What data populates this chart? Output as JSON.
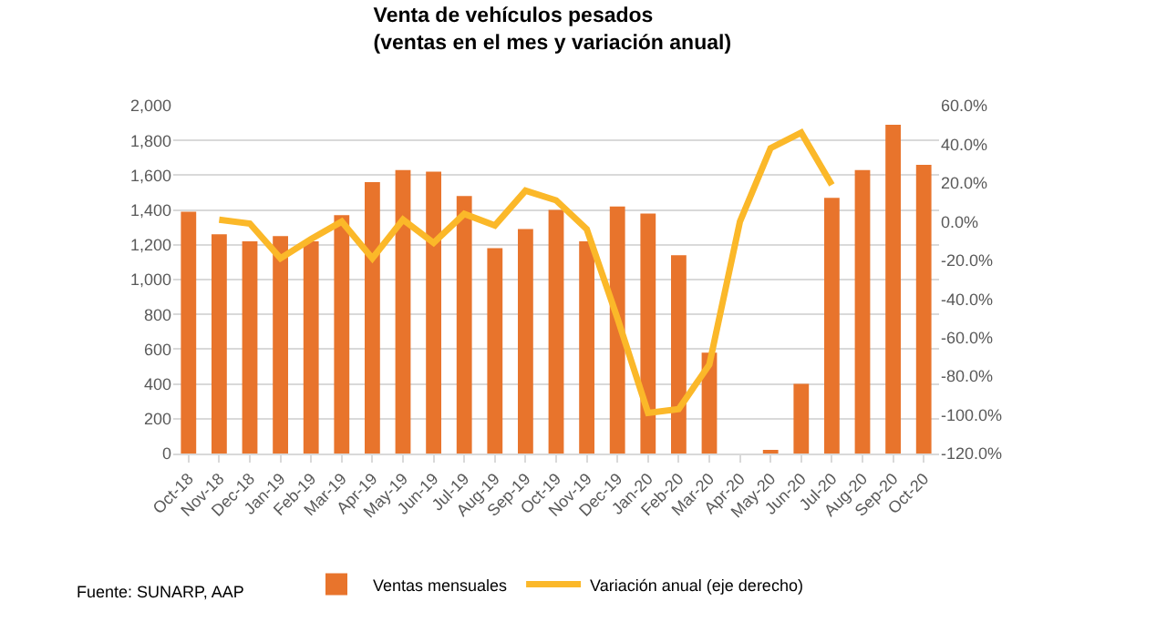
{
  "chart_data": {
    "type": "bar",
    "title": "Venta de vehículos pesados\n(ventas en el mes y variación anual)",
    "categories": [
      "Oct-18",
      "Nov-18",
      "Dec-18",
      "Jan-19",
      "Feb-19",
      "Mar-19",
      "Apr-19",
      "May-19",
      "Jun-19",
      "Jul-19",
      "Aug-19",
      "Sep-19",
      "Oct-19",
      "Nov-19",
      "Dec-19",
      "Jan-20",
      "Feb-20",
      "Mar-20",
      "Apr-20",
      "May-20",
      "Jun-20",
      "Jul-20",
      "Aug-20",
      "Sep-20",
      "Oct-20"
    ],
    "series": [
      {
        "name": "Ventas mensuales",
        "color": "#e8742c",
        "values": [
          1390,
          1260,
          1220,
          1250,
          1220,
          1370,
          1560,
          1630,
          1620,
          1480,
          1180,
          1290,
          1400,
          1220,
          1420,
          1380,
          1140,
          580,
          0,
          20,
          400,
          1470,
          1630,
          1890,
          1660
        ]
      },
      {
        "name": "Variación anual (eje derecho)",
        "type": "line",
        "axis": "y2",
        "color": "#fbb829",
        "values": [
          null,
          1,
          -1,
          -19,
          -9,
          0,
          -19,
          1,
          -11,
          4,
          -2,
          16,
          11,
          -4,
          -50,
          -99,
          -97,
          -74,
          0,
          38,
          46,
          19,
          null,
          null,
          null
        ]
      }
    ],
    "ylim": [
      0,
      2000
    ],
    "yticks": [
      {
        "value": 0,
        "label": "0"
      },
      {
        "value": 200,
        "label": "200"
      },
      {
        "value": 400,
        "label": "400"
      },
      {
        "value": 600,
        "label": "600"
      },
      {
        "value": 800,
        "label": "800"
      },
      {
        "value": 1000,
        "label": "1,000"
      },
      {
        "value": 1200,
        "label": "1,200"
      },
      {
        "value": 1400,
        "label": "1,400"
      },
      {
        "value": 1600,
        "label": "1,600"
      },
      {
        "value": 1800,
        "label": "1,800"
      },
      {
        "value": 2000,
        "label": "2,000"
      }
    ],
    "y2lim": [
      -120,
      60
    ],
    "y2ticks": [
      {
        "value": -120,
        "label": "-120.0%"
      },
      {
        "value": -100,
        "label": "-100.0%"
      },
      {
        "value": -80,
        "label": "-80.0%"
      },
      {
        "value": -60,
        "label": "-60.0%"
      },
      {
        "value": -40,
        "label": "-40.0%"
      },
      {
        "value": -20,
        "label": "-20.0%"
      },
      {
        "value": 0,
        "label": "0.0%"
      },
      {
        "value": 20,
        "label": "20.0%"
      },
      {
        "value": 40,
        "label": "40.0%"
      },
      {
        "value": 60,
        "label": "60.0%"
      }
    ],
    "grid": "y",
    "legend": "bottom",
    "marker": "none",
    "annotations": [
      "Fuente: SUNARP, AAP"
    ]
  }
}
